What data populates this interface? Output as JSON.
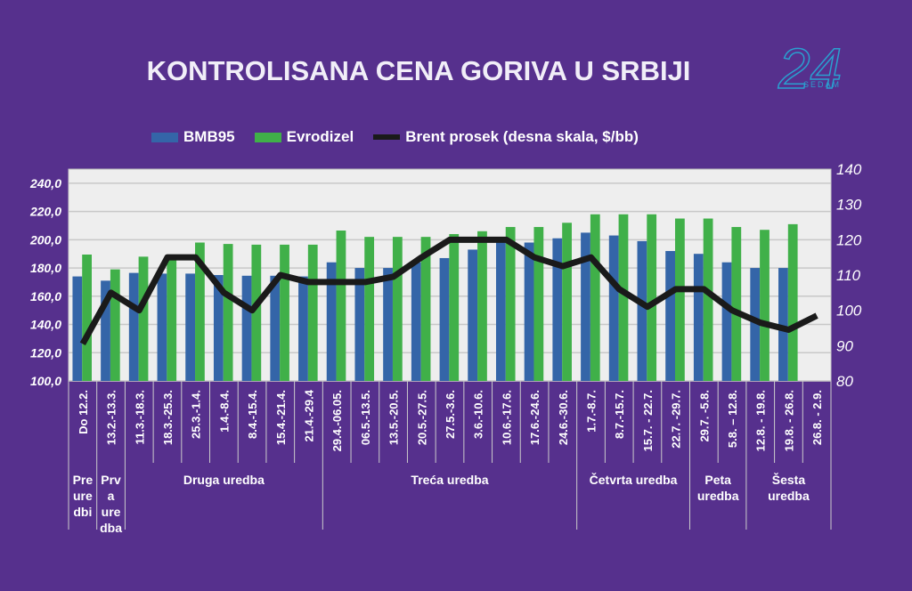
{
  "chart_data": {
    "type": "bar",
    "title": "KONTROLISANA CENA GORIVA U SRBIJI",
    "categories": [
      "Do 12.2.",
      "13.2.-13.3.",
      "11.3.-18.3.",
      "18.3.-25.3.",
      "25.3.-1.4.",
      "1.4.-8.4.",
      "8.4.-15.4.",
      "15.4.-21.4.",
      "21.4.-29.4",
      "29.4.-06.05.",
      "06.5.-13.5.",
      "13.5.-20.5.",
      "20.5.-27.5.",
      "27.5.-3.6.",
      "3.6.-10.6.",
      "10.6.-17.6.",
      "17.6.-24.6.",
      "24.6.-30.6.",
      "1.7.-8.7.",
      "8.7.-15.7.",
      "15.7. - 22.7.",
      "22.7. -29.7.",
      "29.7. -5.8.",
      "5.8. – 12.8.",
      "12.8. - 19.8.",
      "19.8. - 26.8.",
      "26.8. - 2.9."
    ],
    "groups": [
      {
        "label": "Pre ure dbi",
        "lines": [
          "Pre",
          "ure",
          "dbi"
        ],
        "span": 1
      },
      {
        "label": "Prva uredba",
        "lines": [
          "Prv",
          "a",
          "ure",
          "dba"
        ],
        "span": 1
      },
      {
        "label": "Druga uredba",
        "lines": [
          "Druga uredba"
        ],
        "span": 7
      },
      {
        "label": "Treća uredba",
        "lines": [
          "Treća uredba"
        ],
        "span": 9
      },
      {
        "label": "Četvrta uredba",
        "lines": [
          "Četvrta uredba"
        ],
        "span": 4
      },
      {
        "label": "Peta uredba",
        "lines": [
          "Peta",
          "uredba"
        ],
        "span": 2
      },
      {
        "label": "Šesta uredba",
        "lines": [
          "Šesta",
          "uredba"
        ],
        "span": 3
      }
    ],
    "series": [
      {
        "name": "BMB95",
        "axis": "left",
        "type": "bar",
        "color": "#3465a8",
        "values": [
          174,
          171,
          176.5,
          176,
          176,
          175,
          174.5,
          174.5,
          174,
          184,
          180,
          180,
          184,
          187,
          193,
          200,
          198,
          201,
          205,
          203,
          199,
          192,
          190,
          184,
          180,
          180,
          null
        ]
      },
      {
        "name": "Evrodizel",
        "axis": "left",
        "type": "bar",
        "color": "#40b049",
        "values": [
          189.5,
          179,
          188,
          187,
          198,
          197,
          196.5,
          196.5,
          196.5,
          206.5,
          202,
          202,
          202,
          204,
          206,
          209,
          209,
          212,
          218,
          218,
          218,
          215,
          215,
          209,
          207,
          211,
          null
        ]
      },
      {
        "name": "Brent prosek  (desna skala, $/bb)",
        "axis": "right",
        "type": "line",
        "color": "#1a1a1a",
        "values": [
          90.5,
          105,
          100,
          115,
          115,
          105,
          100,
          110,
          108,
          108,
          108,
          109.5,
          115,
          120,
          120,
          120,
          115,
          112.5,
          115,
          106,
          101,
          106,
          106,
          100,
          96.5,
          94.5,
          98.5
        ]
      }
    ],
    "ylim_left": [
      100,
      250
    ],
    "yticks_left": [
      "100,0",
      "120,0",
      "140,0",
      "160,0",
      "180,0",
      "200,0",
      "220,0",
      "240,0"
    ],
    "ylim_right": [
      80,
      140
    ],
    "yticks_right": [
      "80",
      "90",
      "100",
      "110",
      "120",
      "130",
      "140"
    ],
    "grid": true,
    "legend_position": "top"
  },
  "logo": {
    "number": "24",
    "text": "SEDAM"
  }
}
